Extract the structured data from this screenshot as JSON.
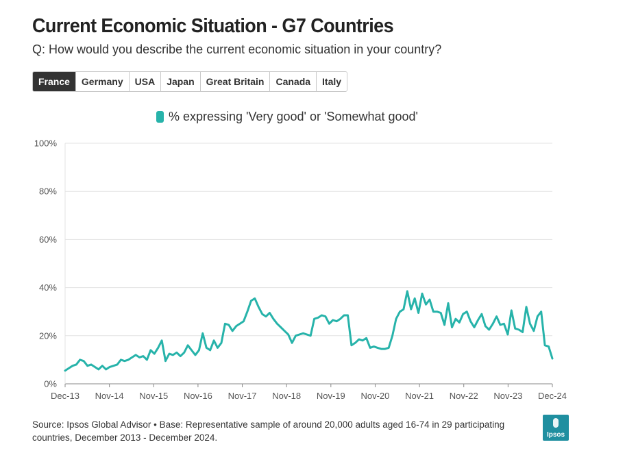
{
  "header": {
    "title": "Current Economic Situation - G7 Countries",
    "subtitle": "Q: How would you describe the current economic situation in your country?"
  },
  "tabs": [
    {
      "label": "France",
      "active": true
    },
    {
      "label": "Germany",
      "active": false
    },
    {
      "label": "USA",
      "active": false
    },
    {
      "label": "Japan",
      "active": false
    },
    {
      "label": "Great Britain",
      "active": false
    },
    {
      "label": "Canada",
      "active": false
    },
    {
      "label": "Italy",
      "active": false
    }
  ],
  "legend": {
    "label": "% expressing 'Very good' or 'Somewhat good'",
    "color": "#27b3aa"
  },
  "footer": {
    "source": "Source: Ipsos Global Advisor • Base: Representative sample of around 20,000 adults aged 16-74 in 29 participating countries, December 2013 - December 2024.",
    "logo_text": "Ipsos"
  },
  "chart_data": {
    "type": "line",
    "title": "",
    "xlabel": "",
    "ylabel": "",
    "ylim": [
      0,
      100
    ],
    "yticks": [
      "0%",
      "20%",
      "40%",
      "60%",
      "80%",
      "100%"
    ],
    "xticks": [
      "Dec-13",
      "Nov-14",
      "Nov-15",
      "Nov-16",
      "Nov-17",
      "Nov-18",
      "Nov-19",
      "Nov-20",
      "Nov-21",
      "Nov-22",
      "Nov-23",
      "Dec-24"
    ],
    "grid": true,
    "legend_position": "top",
    "series": [
      {
        "name": "% expressing 'Very good' or 'Somewhat good'",
        "color": "#27b3aa",
        "values": [
          5.5,
          6.5,
          7.5,
          8,
          10,
          9.5,
          7.5,
          8,
          7,
          6,
          7.5,
          6,
          7,
          7.5,
          8,
          10,
          9.5,
          10,
          11,
          12,
          11,
          11.5,
          10,
          14,
          12.5,
          15,
          18,
          9.5,
          12.5,
          12,
          13,
          11.5,
          13,
          16,
          14,
          12,
          14,
          21,
          15,
          14,
          18,
          15,
          17,
          25,
          24.5,
          22,
          24,
          25,
          26,
          30,
          34.5,
          35.5,
          32,
          29,
          28,
          29.5,
          27,
          25,
          23.5,
          22,
          20.5,
          17,
          20,
          20.5,
          21,
          20.5,
          20,
          27,
          27.5,
          28.5,
          28,
          25,
          26.5,
          26,
          27,
          28.5,
          28.5,
          16,
          17,
          18.5,
          18,
          19,
          15,
          15.5,
          15,
          14.5,
          14.5,
          15,
          20,
          27,
          30,
          31,
          38.5,
          31,
          35.5,
          29.5,
          37.5,
          33,
          35,
          30,
          30,
          29.5,
          24.5,
          33.5,
          23.5,
          27,
          25.5,
          29,
          30,
          26,
          23.5,
          26.5,
          29,
          24,
          22.5,
          25,
          28,
          24.5,
          25,
          20.5,
          30.5,
          23,
          22.5,
          21.5,
          32,
          25,
          22,
          28,
          30,
          16,
          15.5,
          10.5
        ]
      }
    ]
  }
}
